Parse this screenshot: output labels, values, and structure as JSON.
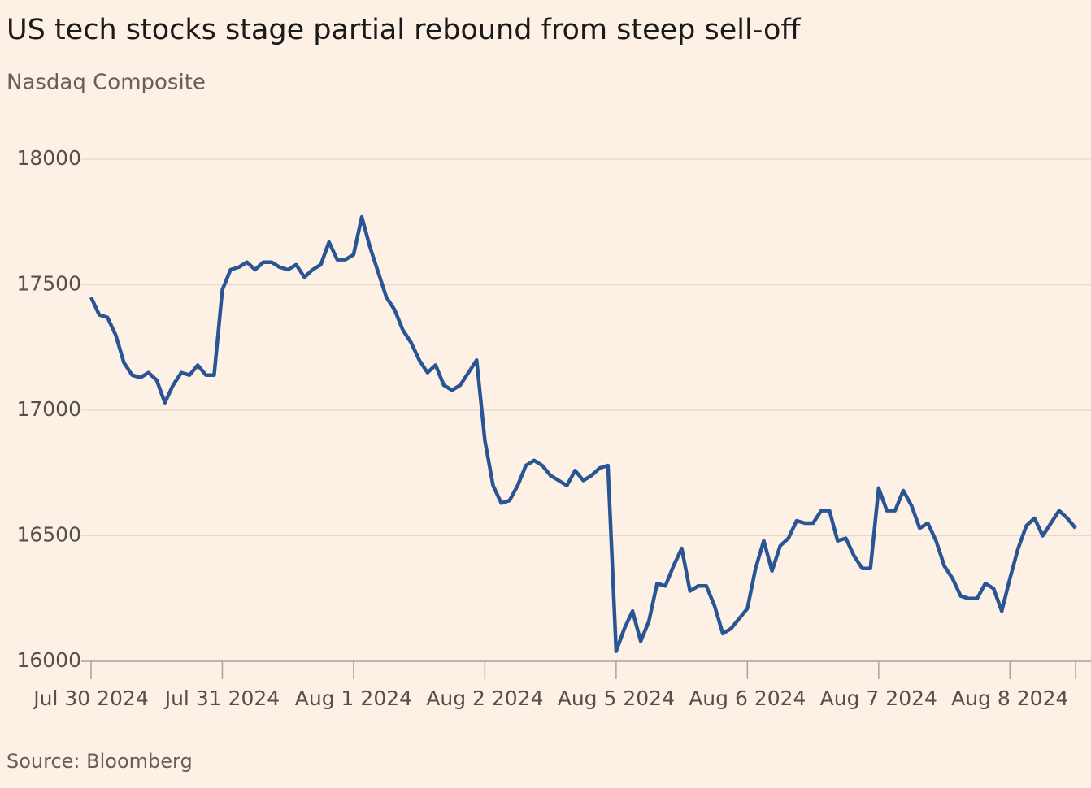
{
  "chart_data": {
    "type": "line",
    "title": "US tech stocks stage partial rebound from steep sell-off",
    "subtitle": "Nasdaq Composite",
    "source": "Source: Bloomberg",
    "categories": [
      "Jul 30 2024",
      null,
      null,
      null,
      null,
      null,
      null,
      null,
      null,
      null,
      null,
      null,
      null,
      null,
      null,
      null,
      "Jul 31 2024",
      null,
      null,
      null,
      null,
      null,
      null,
      null,
      null,
      null,
      null,
      null,
      null,
      null,
      null,
      null,
      "Aug 1 2024",
      null,
      null,
      null,
      null,
      null,
      null,
      null,
      null,
      null,
      null,
      null,
      null,
      null,
      null,
      null,
      "Aug 2 2024",
      null,
      null,
      null,
      null,
      null,
      null,
      null,
      null,
      null,
      null,
      null,
      null,
      null,
      null,
      null,
      "Aug 5 2024",
      null,
      null,
      null,
      null,
      null,
      null,
      null,
      null,
      null,
      null,
      null,
      null,
      null,
      null,
      null,
      "Aug 6 2024",
      null,
      null,
      null,
      null,
      null,
      null,
      null,
      null,
      null,
      null,
      null,
      null,
      null,
      null,
      null,
      "Aug 7 2024",
      null,
      null,
      null,
      null,
      null,
      null,
      null,
      null,
      null,
      null,
      null,
      null,
      null,
      null,
      null,
      "Aug 8 2024",
      null,
      null,
      null,
      null,
      null,
      null,
      null,
      null
    ],
    "series": [
      {
        "name": "Nasdaq Composite",
        "color": "#2a5595",
        "values": [
          17450,
          17380,
          17370,
          17300,
          17190,
          17140,
          17130,
          17150,
          17120,
          17030,
          17100,
          17150,
          17140,
          17180,
          17140,
          17140,
          17480,
          17560,
          17570,
          17590,
          17560,
          17590,
          17590,
          17570,
          17560,
          17580,
          17530,
          17560,
          17580,
          17670,
          17600,
          17600,
          17620,
          17770,
          17650,
          17550,
          17450,
          17400,
          17320,
          17270,
          17200,
          17150,
          17180,
          17100,
          17080,
          17100,
          17150,
          17200,
          16880,
          16700,
          16630,
          16640,
          16700,
          16780,
          16800,
          16780,
          16740,
          16720,
          16700,
          16760,
          16720,
          16740,
          16770,
          16780,
          16040,
          16130,
          16200,
          16080,
          16160,
          16310,
          16300,
          16380,
          16450,
          16280,
          16300,
          16300,
          16220,
          16110,
          16130,
          16170,
          16210,
          16370,
          16480,
          16360,
          16460,
          16490,
          16560,
          16550,
          16550,
          16600,
          16600,
          16480,
          16490,
          16420,
          16370,
          16370,
          16690,
          16600,
          16600,
          16680,
          16620,
          16530,
          16550,
          16480,
          16380,
          16330,
          16260,
          16250,
          16250,
          16310,
          16290,
          16200,
          16330,
          16450,
          16540,
          16570,
          16500,
          16550,
          16600,
          16570,
          16530
        ]
      }
    ],
    "ylim": [
      16000,
      18000
    ],
    "yticks": [
      16000,
      16500,
      17000,
      17500,
      18000
    ],
    "grid": true
  }
}
